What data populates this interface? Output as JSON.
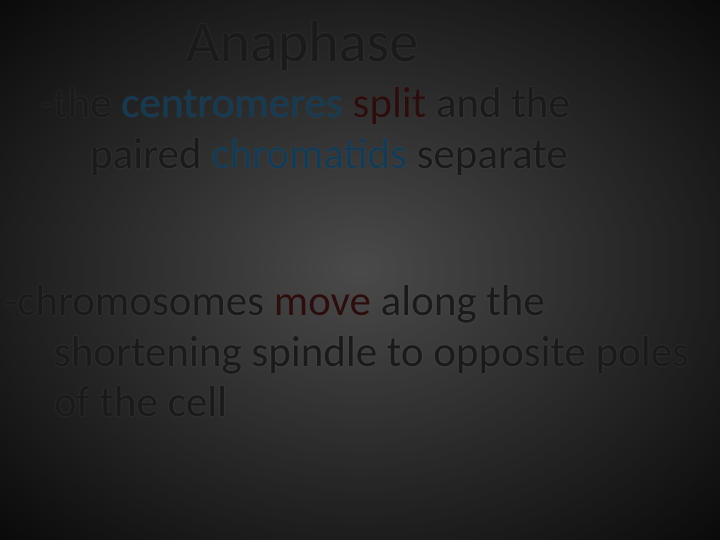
{
  "slide": {
    "title": "Anaphase",
    "background_gradient": {
      "inner": "#4a4a4a",
      "mid": "#2a2a2a",
      "outer": "#0a0a0a"
    },
    "title_fontsize": 58,
    "body_fontsize": 43,
    "font_family": "Segoe UI",
    "text_color": "#1a1a1a",
    "highlight_blue": "#153a52",
    "highlight_red": "#2a0e0e",
    "bullets": [
      {
        "prefix": "-the ",
        "hl1": "centromeres",
        "mid1": " ",
        "hl2": "split",
        "mid2": " and the",
        "line2_pre": "paired ",
        "line2_hl": "chromatids",
        "line2_post": " separate"
      },
      {
        "prefix": "-chromosomes ",
        "hl1": "move",
        "mid1": " along the",
        "line2": "shortening spindle to opposite poles",
        "line3": "of the cell"
      }
    ]
  }
}
